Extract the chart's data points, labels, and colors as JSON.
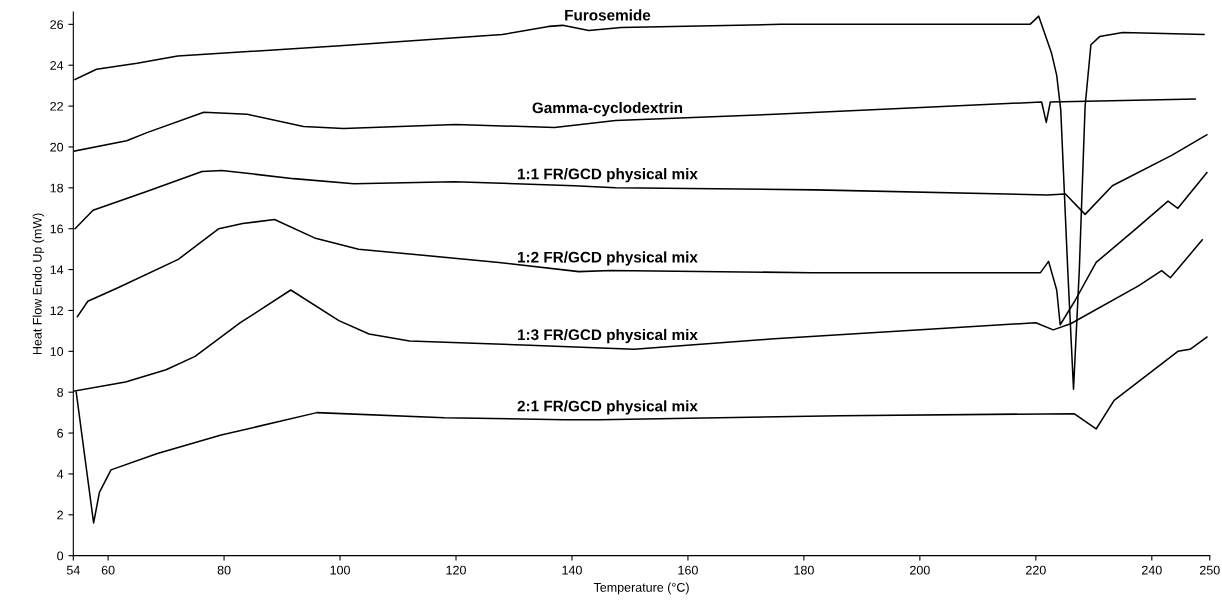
{
  "chart_data": {
    "type": "line",
    "xlabel": "Temperature (°C)",
    "ylabel": "Heat Flow Endo Up (mW)",
    "xlim": [
      54,
      250
    ],
    "xticks": [
      54,
      60,
      80,
      100,
      120,
      140,
      160,
      180,
      200,
      220,
      240,
      250
    ],
    "ylim": [
      0,
      26.6
    ],
    "yticks": [
      0,
      2,
      4,
      6,
      8,
      10,
      12,
      14,
      16,
      18,
      20,
      22,
      24,
      26
    ],
    "grid": false,
    "legend": false,
    "marker": "none",
    "line_style": "solid",
    "series": [
      {
        "name": "Furosemide",
        "color": "#000000",
        "x": [
          54.3,
          58,
          65,
          72,
          100,
          128,
          136,
          138.4,
          142.9,
          148.5,
          176,
          200,
          219,
          220.5,
          222.7,
          223.6,
          224.3,
          225.5,
          226.5,
          227.5,
          228.5,
          229.5,
          231,
          235,
          249
        ],
        "values": [
          23.3,
          23.8,
          24.1,
          24.45,
          24.95,
          25.5,
          25.9,
          25.95,
          25.7,
          25.85,
          26.0,
          26.0,
          26.0,
          26.4,
          24.6,
          23.5,
          21.8,
          14,
          8.15,
          14,
          22,
          25.0,
          25.4,
          25.6,
          25.5
        ]
      },
      {
        "name": "Gamma-cyclodextrin",
        "color": "#000000",
        "x": [
          54.2,
          63.2,
          66.7,
          76.5,
          84,
          93.7,
          100.6,
          120,
          137,
          147.5,
          175,
          221,
          221.8,
          222.5,
          247.5
        ],
        "values": [
          19.8,
          20.3,
          20.7,
          21.7,
          21.6,
          21.0,
          20.9,
          21.1,
          20.95,
          21.3,
          21.6,
          22.2,
          21.2,
          22.2,
          22.35
        ]
      },
      {
        "name": "1:1 FR/GCD physical mix",
        "color": "#000000",
        "x": [
          54.3,
          57.4,
          66.4,
          76.2,
          79.6,
          92,
          102.4,
          119.7,
          140.4,
          147.5,
          182,
          222,
          225.1,
          228.5,
          233.2,
          243.5,
          249.5
        ],
        "values": [
          16.0,
          16.9,
          17.8,
          18.8,
          18.85,
          18.45,
          18.2,
          18.3,
          18.1,
          18.0,
          17.9,
          17.65,
          17.7,
          16.7,
          18.1,
          19.6,
          20.6
        ]
      },
      {
        "name": "1:2 FR/GCD physical mix",
        "color": "#000000",
        "x": [
          54.7,
          56.5,
          61.6,
          72.1,
          79.1,
          83.2,
          88.7,
          95.6,
          103.2,
          127.4,
          141.2,
          146.7,
          181.3,
          220.8,
          222.2,
          223.6,
          224.2,
          226.7,
          230.4,
          237.3,
          242.8,
          244.5,
          249.5
        ],
        "values": [
          11.7,
          12.45,
          13.1,
          14.5,
          16.0,
          16.25,
          16.45,
          15.55,
          15.0,
          14.35,
          13.9,
          13.95,
          13.85,
          13.85,
          14.4,
          13.0,
          11.3,
          12.45,
          14.35,
          16.0,
          17.35,
          17.0,
          18.75
        ]
      },
      {
        "name": "1:3 FR/GCD physical mix",
        "color": "#000000",
        "x": [
          54,
          63,
          70,
          75,
          82.8,
          91.5,
          99.8,
          105,
          112,
          132.7,
          150.7,
          174.2,
          220,
          223,
          226,
          237.7,
          241.7,
          243.2,
          248.7
        ],
        "values": [
          8.05,
          8.5,
          9.1,
          9.75,
          11.4,
          13.0,
          11.5,
          10.85,
          10.5,
          10.3,
          10.1,
          10.6,
          11.4,
          11.05,
          11.35,
          13.2,
          13.95,
          13.6,
          15.45
        ]
      },
      {
        "name": "2:1 FR/GCD physical mix",
        "color": "#000000",
        "x": [
          54.5,
          57.5,
          58.5,
          60.5,
          68.5,
          79.5,
          96,
          118,
          138.7,
          144.7,
          186.2,
          226.6,
          230.4,
          233.5,
          244.5,
          246.6,
          249.5
        ],
        "values": [
          8.0,
          1.6,
          3.1,
          4.2,
          5.0,
          5.9,
          7.0,
          6.75,
          6.65,
          6.65,
          6.85,
          6.95,
          6.2,
          7.6,
          10.0,
          10.1,
          10.7
        ]
      }
    ]
  }
}
